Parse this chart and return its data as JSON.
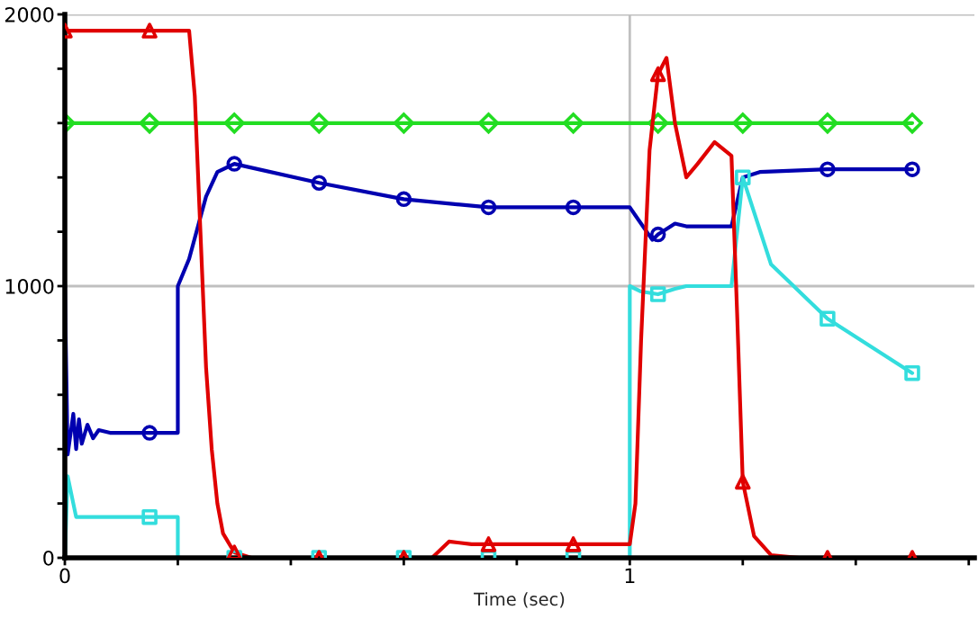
{
  "chart_data": {
    "type": "line",
    "xlabel": "Time (sec)",
    "xlim": [
      0,
      1.61
    ],
    "ylim": [
      0,
      2000
    ],
    "xticks": [
      0,
      {
        "value": 0.2,
        "label": null
      },
      {
        "value": 0.4,
        "label": null
      },
      {
        "value": 0.6,
        "label": null
      },
      {
        "value": 0.8,
        "label": null
      },
      1,
      {
        "value": 1.2,
        "label": null
      },
      {
        "value": 1.4,
        "label": null
      },
      {
        "value": 1.6,
        "label": null
      }
    ],
    "yticks": [
      0,
      {
        "value": 200,
        "label": null
      },
      {
        "value": 400,
        "label": null
      },
      {
        "value": 600,
        "label": null
      },
      {
        "value": 800,
        "label": null
      },
      1000,
      {
        "value": 1200,
        "label": null
      },
      {
        "value": 1400,
        "label": null
      },
      {
        "value": 1600,
        "label": null
      },
      {
        "value": 1800,
        "label": null
      },
      2000
    ],
    "grid": true,
    "legend": false,
    "series": [
      {
        "color": "#22dd22",
        "marker": "diamond",
        "x": [
          0,
          0.15,
          0.3,
          0.45,
          0.6,
          0.75,
          0.9,
          1.05,
          1.2,
          1.35,
          1.5
        ],
        "values": [
          1600,
          1600,
          1600,
          1600,
          1600,
          1600,
          1600,
          1600,
          1600,
          1600,
          1600
        ]
      },
      {
        "color": "#0000b0",
        "x": [
          0,
          0.005,
          0.015,
          0.02,
          0.025,
          0.03,
          0.04,
          0.05,
          0.06,
          0.08,
          0.15,
          0.2,
          0.2,
          0.22,
          0.25,
          0.27,
          0.3,
          0.45,
          0.6,
          0.75,
          0.9,
          1.0,
          1.01,
          1.04,
          1.05,
          1.08,
          1.1,
          1.18,
          1.2,
          1.23,
          1.35,
          1.5
        ],
        "values": [
          1000,
          380,
          530,
          400,
          510,
          420,
          490,
          440,
          470,
          460,
          460,
          460,
          1000,
          1100,
          1330,
          1420,
          1450,
          1380,
          1320,
          1290,
          1290,
          1290,
          1260,
          1170,
          1190,
          1230,
          1220,
          1220,
          1400,
          1420,
          1430,
          1430
        ]
      },
      {
        "type": "scatter",
        "color": "#0000b0",
        "marker": "circle",
        "x": [
          0.15,
          0.3,
          0.45,
          0.6,
          0.75,
          0.9,
          1.05,
          1.35,
          1.5
        ],
        "values": [
          460,
          1450,
          1380,
          1320,
          1290,
          1290,
          1190,
          1430,
          1430
        ]
      },
      {
        "color": "#33dddd",
        "x": [
          0,
          0.005,
          0.015,
          0.02,
          0.05,
          0.15,
          0.2,
          0.2,
          0.3,
          0.45,
          0.6,
          0.75,
          0.9,
          1.0,
          1.0,
          1.02,
          1.05,
          1.08,
          1.1,
          1.18,
          1.2,
          1.25,
          1.35,
          1.5
        ],
        "values": [
          0,
          300,
          200,
          150,
          150,
          150,
          150,
          0,
          0,
          0,
          0,
          0,
          0,
          0,
          1000,
          980,
          970,
          990,
          1000,
          1000,
          1400,
          1080,
          880,
          680
        ]
      },
      {
        "type": "scatter",
        "color": "#33dddd",
        "marker": "square",
        "x": [
          0.15,
          0.3,
          0.45,
          0.6,
          0.75,
          0.9,
          1.05,
          1.2,
          1.35,
          1.5
        ],
        "values": [
          150,
          0,
          0,
          0,
          0,
          0,
          970,
          1400,
          880,
          680
        ]
      },
      {
        "color": "#e00000",
        "x": [
          0,
          0.15,
          0.22,
          0.23,
          0.24,
          0.25,
          0.26,
          0.27,
          0.28,
          0.3,
          0.33,
          0.45,
          0.6,
          0.65,
          0.68,
          0.72,
          0.75,
          0.9,
          1.0,
          1.01,
          1.02,
          1.035,
          1.05,
          1.065,
          1.08,
          1.1,
          1.12,
          1.15,
          1.18,
          1.19,
          1.2,
          1.22,
          1.25,
          1.3,
          1.35,
          1.5
        ],
        "values": [
          1940,
          1940,
          1940,
          1700,
          1200,
          700,
          400,
          200,
          90,
          20,
          0,
          0,
          0,
          0,
          60,
          50,
          50,
          50,
          50,
          200,
          800,
          1500,
          1780,
          1840,
          1600,
          1400,
          1450,
          1530,
          1480,
          900,
          280,
          80,
          10,
          0,
          0,
          0
        ]
      },
      {
        "type": "scatter",
        "color": "#e00000",
        "marker": "triangle",
        "x": [
          0,
          0.15,
          0.3,
          0.45,
          0.6,
          0.75,
          0.9,
          1.05,
          1.2,
          1.35,
          1.5
        ],
        "values": [
          1940,
          1940,
          20,
          0,
          0,
          50,
          50,
          1780,
          280,
          0,
          0
        ]
      }
    ]
  }
}
